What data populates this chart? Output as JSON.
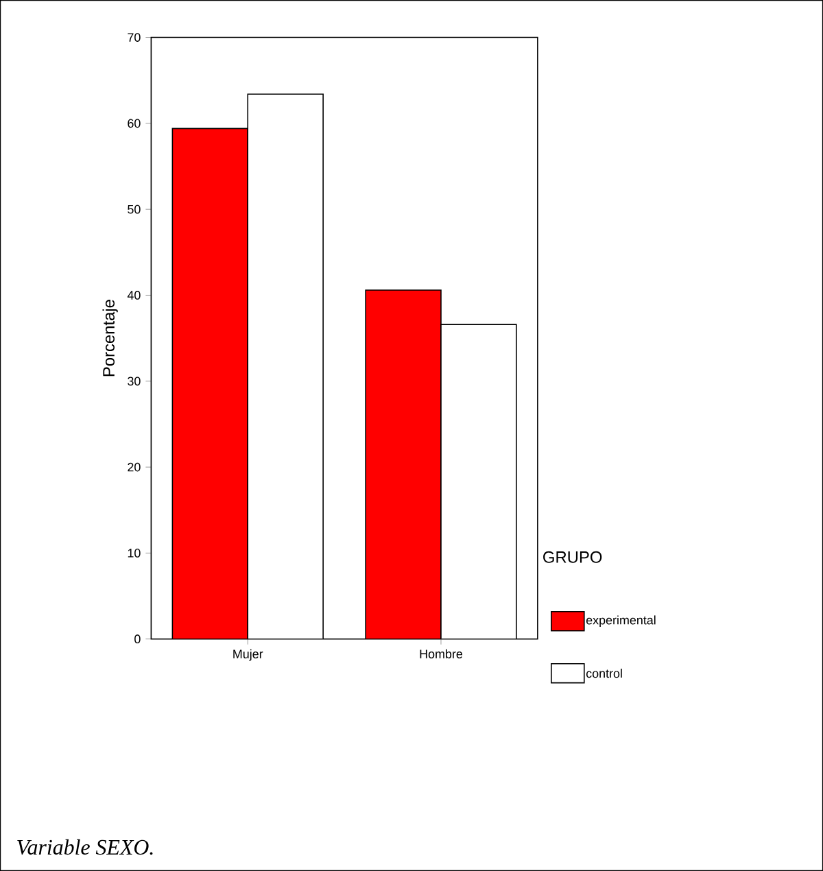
{
  "chart_data": {
    "type": "bar",
    "ylabel": "Porcentaje",
    "legend_title": "GRUPO",
    "categories": [
      "Mujer",
      "Hombre"
    ],
    "series": [
      {
        "name": "experimental",
        "color": "#ff0000",
        "values": [
          59.4,
          40.6
        ]
      },
      {
        "name": "control",
        "color": "#ffffff",
        "values": [
          63.4,
          36.6
        ]
      }
    ],
    "ylim": [
      0,
      70
    ],
    "yticks": [
      0,
      10,
      20,
      30,
      40,
      50,
      60,
      70
    ],
    "grid": false,
    "legend": "right",
    "annotations": [
      "Variable SEXO."
    ]
  }
}
